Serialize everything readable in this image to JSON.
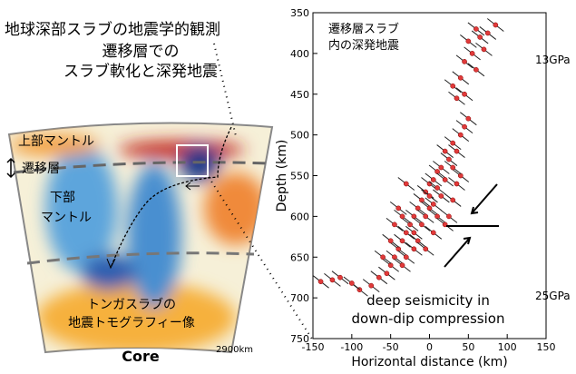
{
  "header": {
    "title": "地球深部スラブの地震学的観測",
    "subtitle_lines": [
      "遷移層での",
      "スラブ軟化と深発地震"
    ]
  },
  "diagram": {
    "labels": {
      "upper_mantle": "上部マントル",
      "transition_zone": "遷移層",
      "lower_mantle_lines": [
        "下部",
        "マントル"
      ],
      "tomography_lines": [
        "トンガスラブの",
        "地震トモグラフィー像"
      ],
      "core": "Core",
      "depth": "2900km"
    }
  },
  "chart_data": {
    "type": "scatter",
    "xlabel": "Horizontal distance (km)",
    "ylabel": "Depth (km)",
    "color": "#e03a3a",
    "xlim": [
      -150,
      150
    ],
    "ylim": [
      350,
      750
    ],
    "y_inverted": true,
    "xticks": [
      -150,
      -100,
      -50,
      0,
      50,
      100,
      150
    ],
    "yticks": [
      350,
      400,
      450,
      500,
      550,
      600,
      650,
      700,
      750
    ],
    "x": [
      60,
      75,
      85,
      50,
      55,
      70,
      45,
      60,
      65,
      40,
      30,
      45,
      35,
      50,
      45,
      40,
      30,
      35,
      20,
      25,
      15,
      10,
      20,
      5,
      0,
      10,
      -5,
      0,
      15,
      -10,
      5,
      -15,
      0,
      -20,
      -5,
      -25,
      -10,
      -30,
      5,
      -35,
      -15,
      -40,
      -20,
      -45,
      -30,
      -50,
      -35,
      -55,
      -65,
      -75,
      -90,
      -40,
      -35,
      -45,
      -30,
      25,
      30,
      10,
      20,
      -60,
      40,
      35,
      30,
      -20,
      -5,
      -50,
      -140,
      -125,
      -115,
      -100
    ],
    "values": [
      370,
      375,
      365,
      385,
      400,
      395,
      410,
      420,
      380,
      430,
      440,
      450,
      455,
      480,
      490,
      500,
      510,
      520,
      520,
      530,
      540,
      545,
      555,
      555,
      560,
      565,
      570,
      575,
      575,
      580,
      585,
      590,
      590,
      600,
      600,
      610,
      610,
      620,
      620,
      630,
      630,
      640,
      640,
      650,
      650,
      660,
      660,
      670,
      675,
      685,
      690,
      590,
      600,
      610,
      560,
      600,
      580,
      600,
      610,
      650,
      550,
      560,
      540,
      620,
      640,
      630,
      680,
      678,
      675,
      682
    ],
    "annotation_lines": [
      "遷移層スラブ",
      "内の深発地震"
    ],
    "pressure_labels": [
      "13GPa",
      "25GPa"
    ],
    "note_lines": [
      "deep seismicity in",
      "down-dip compression"
    ]
  }
}
